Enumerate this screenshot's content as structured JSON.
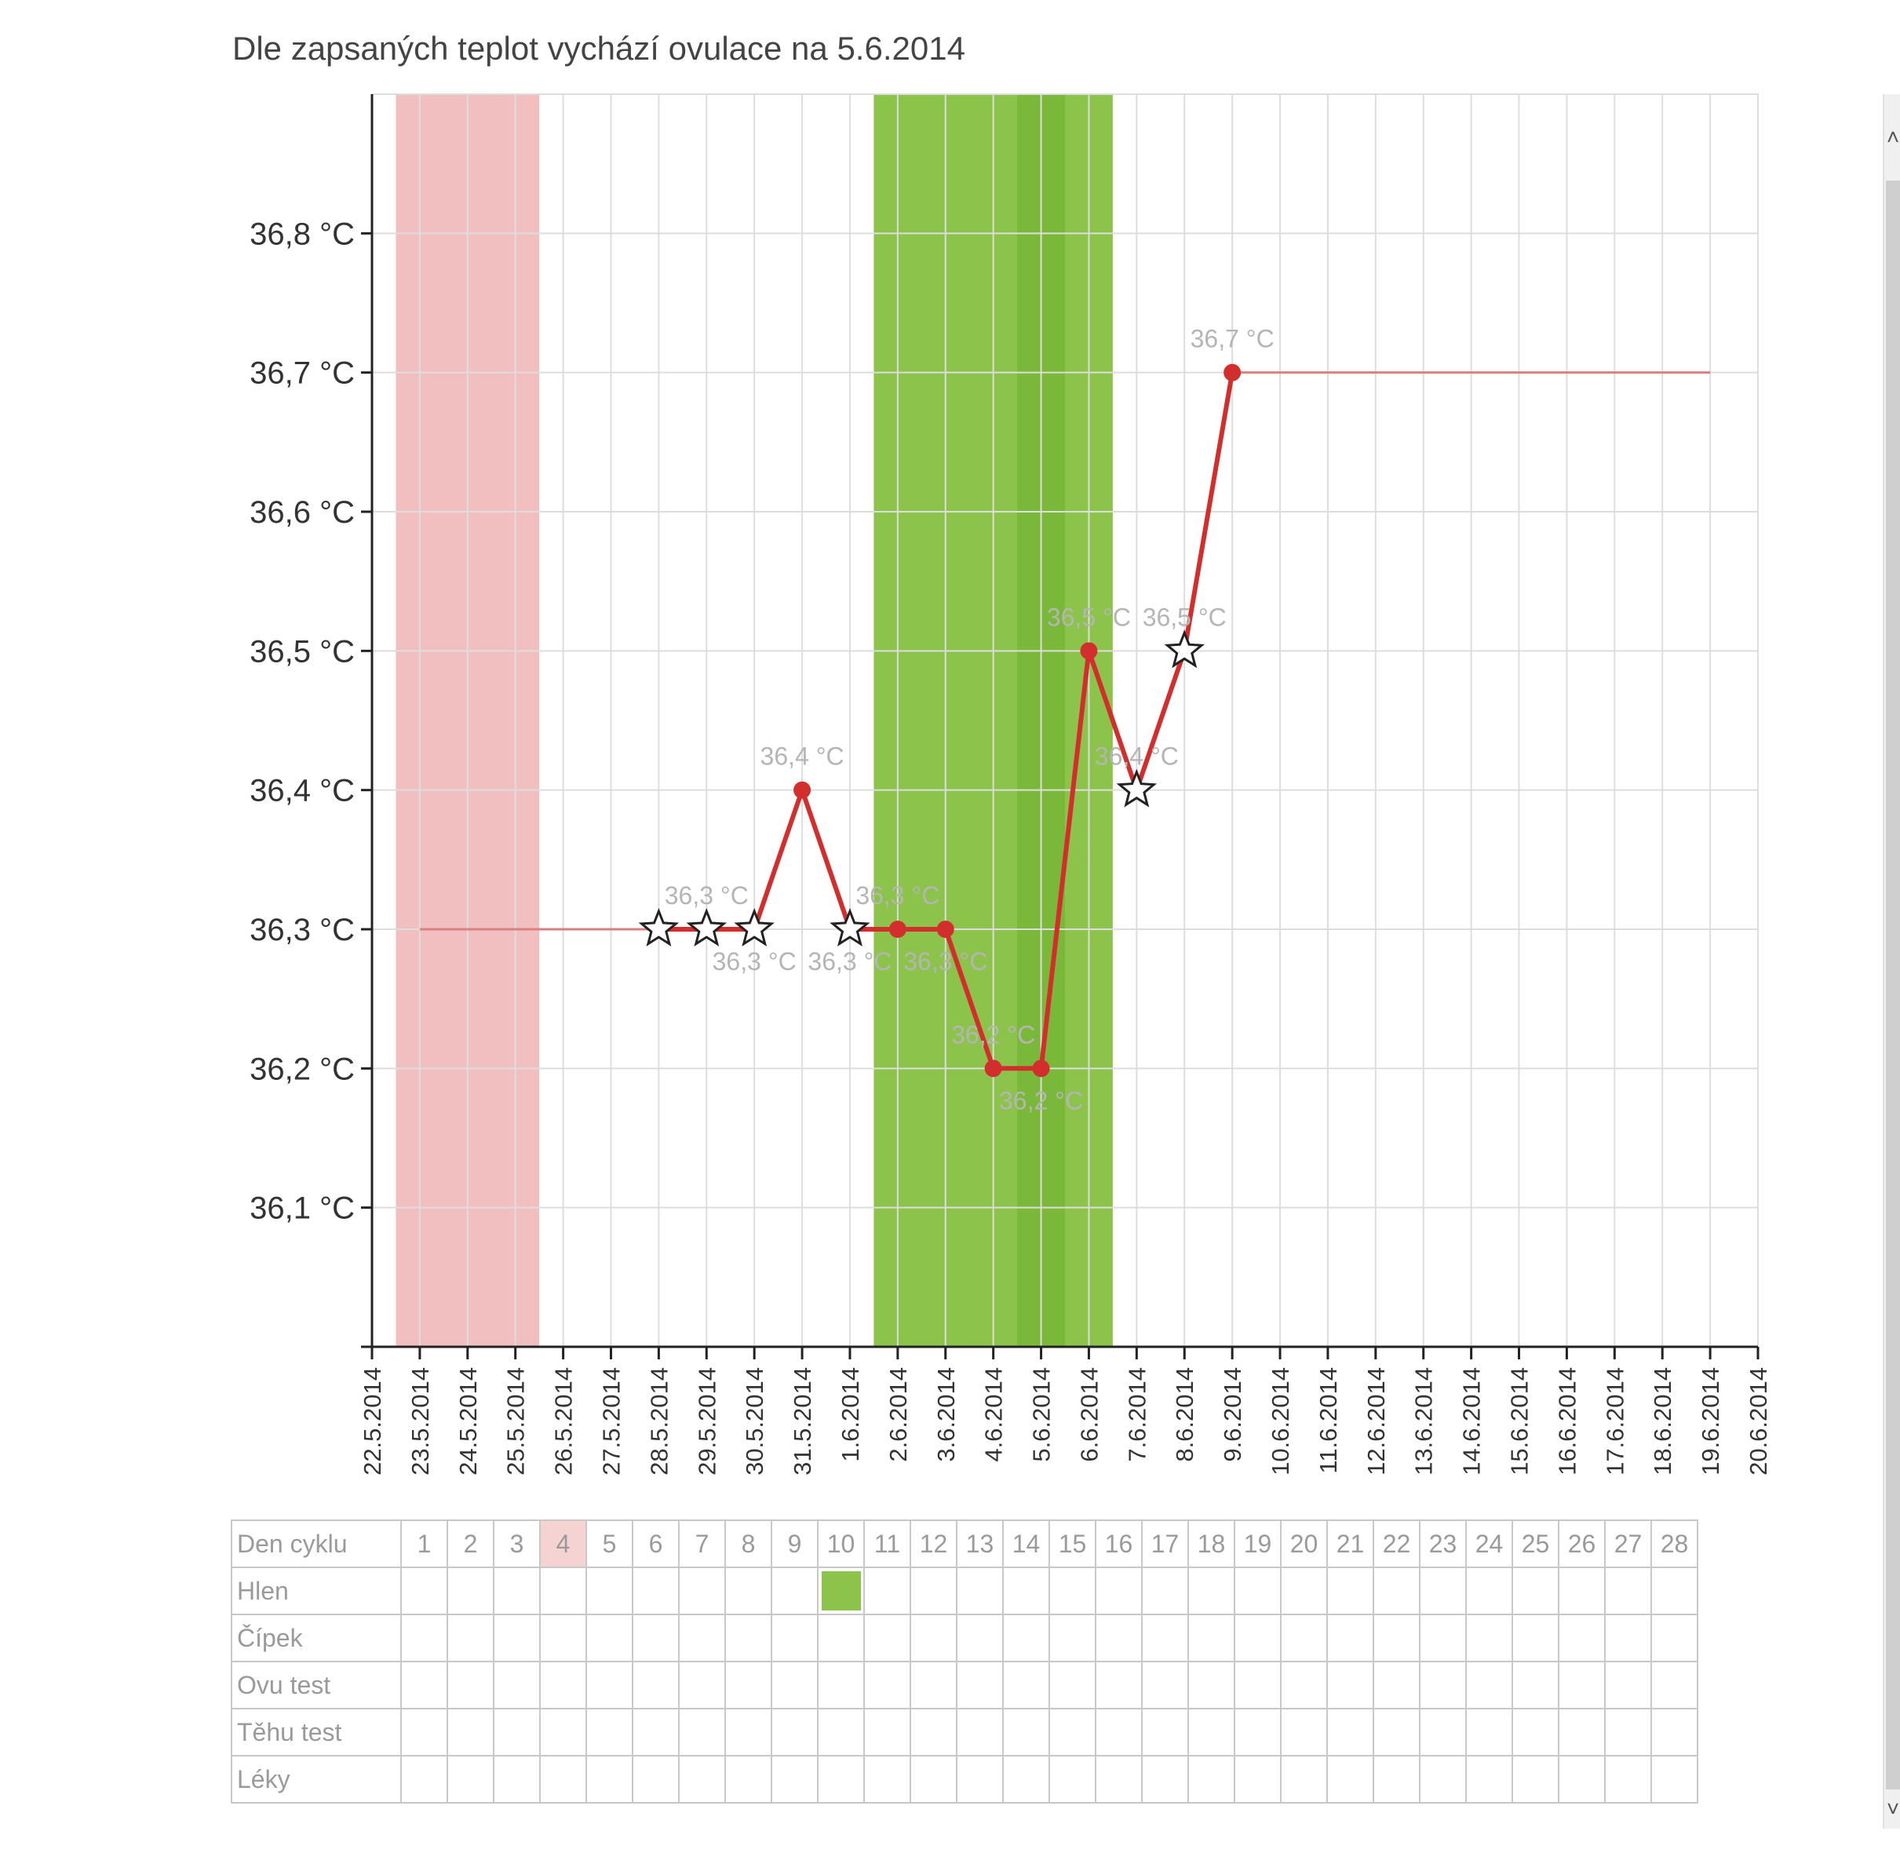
{
  "subtitle": "Dle zapsaných teplot vychází ovulace na 5.6.2014",
  "colors": {
    "period": "#f2bfc1",
    "fertile": "#8cc34a",
    "fertile_dark": "#7ab83a",
    "line": "#d32e2e",
    "projection": "#d98080",
    "grid": "#dddddd"
  },
  "chart_data": {
    "type": "line",
    "title": "",
    "xlabel": "",
    "ylabel": "",
    "ylim": [
      36.0,
      36.9
    ],
    "y_ticks": [
      "36,1 °C",
      "36,2 °C",
      "36,3 °C",
      "36,4 °C",
      "36,5 °C",
      "36,6 °C",
      "36,7 °C",
      "36,8 °C"
    ],
    "y_tick_values": [
      36.1,
      36.2,
      36.3,
      36.4,
      36.5,
      36.6,
      36.7,
      36.8
    ],
    "x_categories": [
      "22.5.2014",
      "23.5.2014",
      "24.5.2014",
      "25.5.2014",
      "26.5.2014",
      "27.5.2014",
      "28.5.2014",
      "29.5.2014",
      "30.5.2014",
      "31.5.2014",
      "1.6.2014",
      "2.6.2014",
      "3.6.2014",
      "4.6.2014",
      "5.6.2014",
      "6.6.2014",
      "7.6.2014",
      "8.6.2014",
      "9.6.2014",
      "10.6.2014",
      "11.6.2014",
      "12.6.2014",
      "13.6.2014",
      "14.6.2014",
      "15.6.2014",
      "16.6.2014",
      "17.6.2014",
      "18.6.2014",
      "19.6.2014",
      "20.6.2014"
    ],
    "period_days": [
      "23.5.2014",
      "25.5.2014"
    ],
    "fertile_days": [
      "2.6.2014",
      "6.6.2014"
    ],
    "fertile_peak_days": [
      "5.6.2014"
    ],
    "projection_before": {
      "from": "23.5.2014",
      "to": "28.5.2014",
      "value": 36.3
    },
    "projection_after": {
      "from": "9.6.2014",
      "to": "19.6.2014",
      "value": 36.7
    },
    "series": [
      {
        "points": [
          {
            "x": "28.5.2014",
            "y": 36.3,
            "marker": "star",
            "label": ""
          },
          {
            "x": "29.5.2014",
            "y": 36.3,
            "marker": "star",
            "label": "36,3 °C"
          },
          {
            "x": "30.5.2014",
            "y": 36.3,
            "marker": "star",
            "label": "36,3 °C"
          },
          {
            "x": "31.5.2014",
            "y": 36.4,
            "marker": "dot",
            "label": "36,4 °C"
          },
          {
            "x": "1.6.2014",
            "y": 36.3,
            "marker": "star",
            "label": "36,3 °C"
          },
          {
            "x": "2.6.2014",
            "y": 36.3,
            "marker": "dot",
            "label": "36,3 °C"
          },
          {
            "x": "3.6.2014",
            "y": 36.3,
            "marker": "dot",
            "label": "36,3 °C"
          },
          {
            "x": "4.6.2014",
            "y": 36.2,
            "marker": "dot",
            "label": "36,2 °C"
          },
          {
            "x": "5.6.2014",
            "y": 36.2,
            "marker": "dot",
            "label": "36,2 °C"
          },
          {
            "x": "6.6.2014",
            "y": 36.5,
            "marker": "dot",
            "label": "36,5 °C"
          },
          {
            "x": "7.6.2014",
            "y": 36.4,
            "marker": "star",
            "label": "36,4 °C"
          },
          {
            "x": "8.6.2014",
            "y": 36.5,
            "marker": "star",
            "label": "36,5 °C"
          },
          {
            "x": "9.6.2014",
            "y": 36.7,
            "marker": "dot",
            "label": "36,7 °C"
          }
        ]
      }
    ]
  },
  "table": {
    "header_label": "Den cyklu",
    "days": [
      "1",
      "2",
      "3",
      "4",
      "5",
      "6",
      "7",
      "8",
      "9",
      "10",
      "11",
      "12",
      "13",
      "14",
      "15",
      "16",
      "17",
      "18",
      "19",
      "20",
      "21",
      "22",
      "23",
      "24",
      "25",
      "26",
      "27",
      "28"
    ],
    "highlight_day": "4",
    "rows": [
      {
        "label": "Hlen",
        "marked_day": "10"
      },
      {
        "label": "Čípek"
      },
      {
        "label": "Ovu test"
      },
      {
        "label": "Těhu test"
      },
      {
        "label": "Léky"
      }
    ]
  }
}
